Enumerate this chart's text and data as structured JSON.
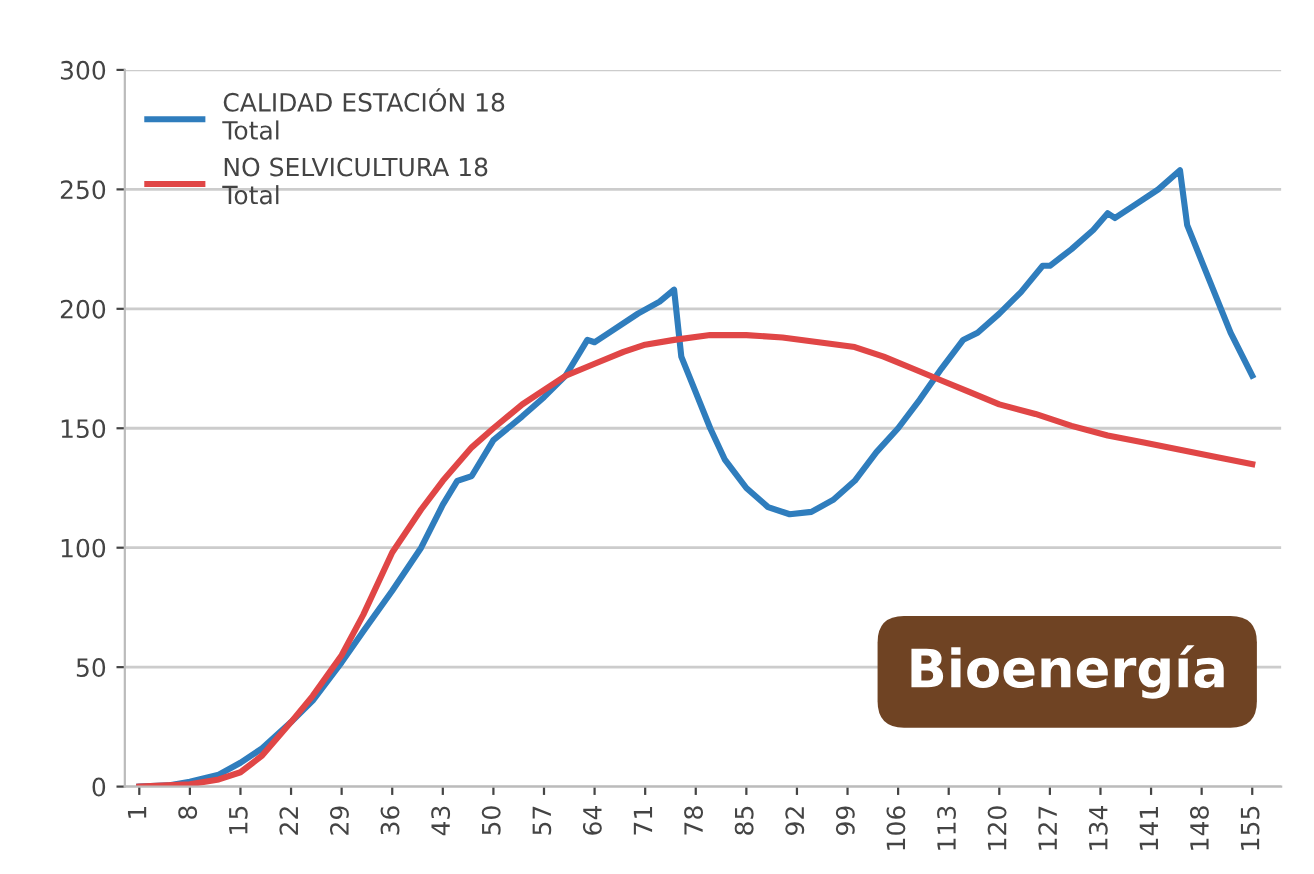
{
  "chart_data": {
    "type": "line",
    "xlim": [
      -1,
      159
    ],
    "xticks": [
      1,
      8,
      15,
      22,
      29,
      36,
      43,
      50,
      57,
      64,
      71,
      78,
      85,
      92,
      99,
      106,
      113,
      120,
      127,
      134,
      141,
      148,
      155
    ],
    "ylim": [
      0,
      300
    ],
    "yticks": [
      0,
      50,
      100,
      150,
      200,
      250,
      300
    ],
    "grid": "y",
    "legend": "top left",
    "line_style": "solid",
    "marker": "none",
    "annotations": [
      "Bioenergía"
    ],
    "series": [
      {
        "name": "CALIDAD ESTACIÓN 18\nTotal",
        "color": "#2f7dbd",
        "x": [
          1,
          5,
          8,
          12,
          15,
          18,
          22,
          25,
          29,
          32,
          36,
          40,
          43,
          45,
          47,
          50,
          54,
          57,
          60,
          62,
          63,
          64,
          66,
          70,
          73,
          75,
          76,
          78,
          80,
          82,
          85,
          88,
          91,
          94,
          97,
          100,
          103,
          106,
          109,
          112,
          115,
          117,
          120,
          123,
          126,
          127,
          130,
          133,
          135,
          136,
          139,
          142,
          145,
          146,
          148,
          150,
          152,
          155
        ],
        "values": [
          0,
          0.5,
          2,
          5,
          10,
          16,
          27,
          36,
          52,
          65,
          82,
          100,
          118,
          128,
          130,
          145,
          155,
          163,
          172,
          182,
          187,
          186,
          190,
          198,
          203,
          208,
          180,
          165,
          150,
          137,
          125,
          117,
          114,
          115,
          120,
          128,
          140,
          150,
          162,
          175,
          187,
          190,
          198,
          207,
          218,
          218,
          225,
          233,
          240,
          238,
          244,
          250,
          258,
          235,
          220,
          205,
          190,
          172
        ]
      },
      {
        "name": "NO SELVICULTURA 18\nTotal",
        "color": "#e04646",
        "x": [
          1,
          8,
          12,
          15,
          18,
          22,
          25,
          29,
          32,
          36,
          40,
          43,
          47,
          50,
          54,
          57,
          60,
          64,
          68,
          71,
          75,
          80,
          85,
          90,
          95,
          100,
          104,
          108,
          112,
          116,
          120,
          125,
          130,
          135,
          140,
          145,
          150,
          155
        ],
        "values": [
          0,
          1,
          3,
          6,
          13,
          27,
          38,
          55,
          72,
          98,
          116,
          128,
          142,
          150,
          160,
          166,
          172,
          177,
          182,
          185,
          187,
          189,
          189,
          188,
          186,
          184,
          180,
          175,
          170,
          165,
          160,
          156,
          151,
          147,
          144,
          141,
          138,
          135
        ]
      }
    ]
  }
}
